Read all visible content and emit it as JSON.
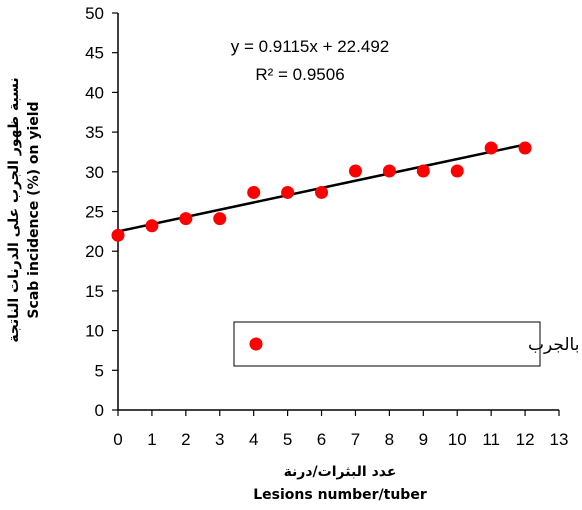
{
  "chart_data": {
    "type": "scatter",
    "x": [
      0,
      1,
      2,
      3,
      4,
      5,
      6,
      7,
      8,
      9,
      10,
      11,
      12
    ],
    "series": [
      {
        "name": "نسبة الدرنات المصابة بالجرب",
        "color": "#ff0000",
        "marker": "circle",
        "values": [
          22.0,
          23.2,
          24.1,
          24.1,
          27.4,
          27.4,
          27.4,
          30.1,
          30.1,
          30.1,
          30.1,
          33.0,
          33.0
        ]
      }
    ],
    "trendline": {
      "type": "linear",
      "slope": 0.9115,
      "intercept": 22.492,
      "color": "#000000"
    },
    "annotations": {
      "equation": "y = 0.9115x + 22.492",
      "r2": "R² = 0.9506"
    },
    "xlabel_arabic": "عدد البثرات/درنة",
    "xlabel": "Lesions number/tuber",
    "ylabel_arabic": "نسبة ظهور الجرب على الدرنات الناتجة",
    "ylabel": "Scab incidence (%) on yield",
    "xlim": [
      0,
      13
    ],
    "ylim": [
      0,
      50
    ],
    "xticks": [
      0,
      1,
      2,
      3,
      4,
      5,
      6,
      7,
      8,
      9,
      10,
      11,
      12,
      13
    ],
    "yticks": [
      0,
      5,
      10,
      15,
      20,
      25,
      30,
      35,
      40,
      45,
      50
    ],
    "grid": false,
    "legend_position": "bottom-right"
  }
}
